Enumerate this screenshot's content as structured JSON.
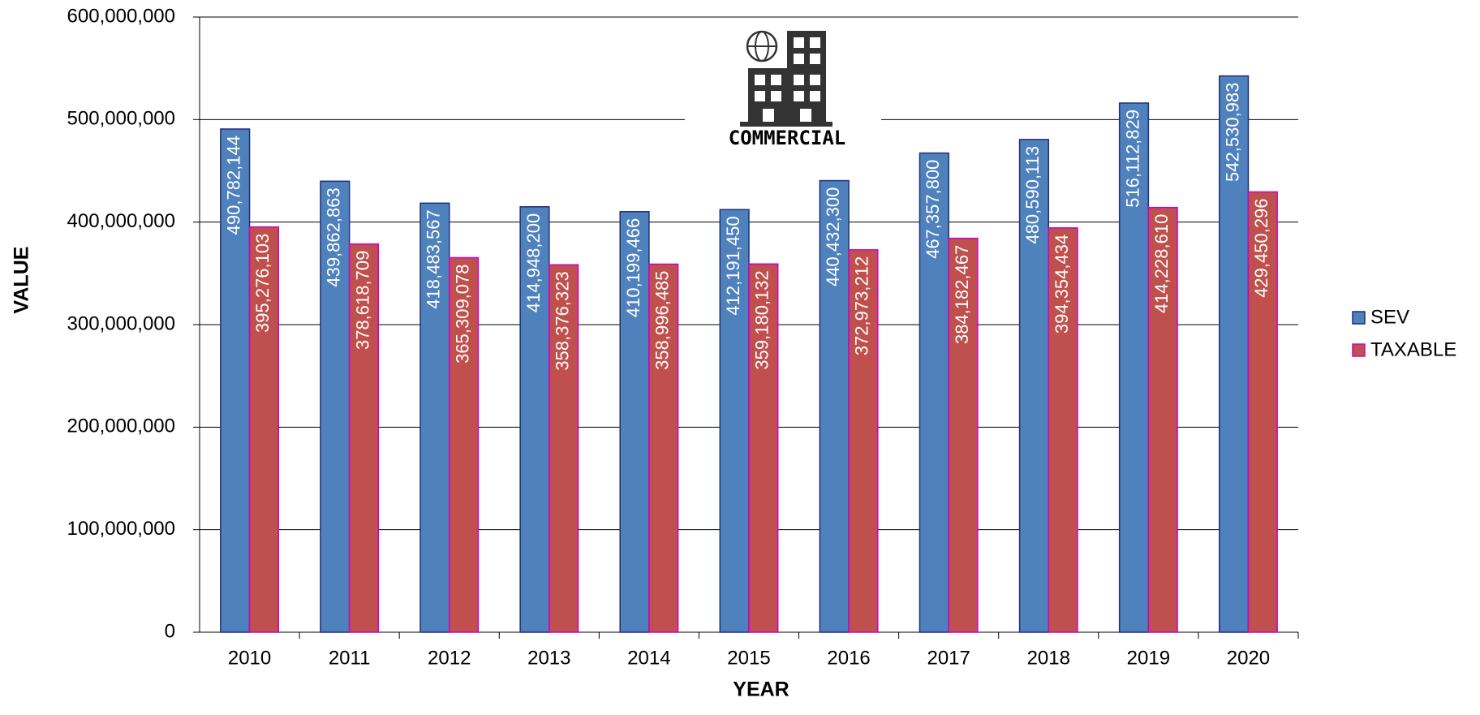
{
  "chart_data": {
    "type": "bar",
    "x_label": "YEAR",
    "y_label": "VALUE",
    "annotation": "COMMERCIAL",
    "categories": [
      "2010",
      "2011",
      "2012",
      "2013",
      "2014",
      "2015",
      "2016",
      "2017",
      "2018",
      "2019",
      "2020"
    ],
    "series": [
      {
        "name": "SEV",
        "color": "#4f81bd",
        "values": [
          490782144,
          439862863,
          418483567,
          414948200,
          410199466,
          412191450,
          440432300,
          467357800,
          480590113,
          516112829,
          542530983
        ],
        "value_labels": [
          "490,782,144",
          "439,862,863",
          "418,483,567",
          "414,948,200",
          "410,199,466",
          "412,191,450",
          "440,432,300",
          "467,357,800",
          "480,590,113",
          "516,112,829",
          "542,530,983"
        ]
      },
      {
        "name": "TAXABLE",
        "color": "#c0504d",
        "values": [
          395276103,
          378618709,
          365309078,
          358376323,
          358996485,
          359180132,
          372973212,
          384182467,
          394354434,
          414228610,
          429450296
        ],
        "value_labels": [
          "395,276,103",
          "378,618,709",
          "365,309,078",
          "358,376,323",
          "358,996,485",
          "359,180,132",
          "372,973,212",
          "384,182,467",
          "394,354,434",
          "414,228,610",
          "429,450,296"
        ]
      }
    ],
    "ylim": [
      0,
      600000000
    ],
    "yticks": [
      0,
      {
        "value": 100000000,
        "label": "100,000,000"
      },
      {
        "value": 200000000,
        "label": "200,000,000"
      },
      {
        "value": 300000000,
        "label": "300,000,000"
      },
      {
        "value": 400000000,
        "label": "400,000,000"
      },
      {
        "value": 500000000,
        "label": "500,000,000"
      },
      {
        "value": 600000000,
        "label": "600,000,000"
      }
    ],
    "grid": true,
    "legend": "right"
  }
}
